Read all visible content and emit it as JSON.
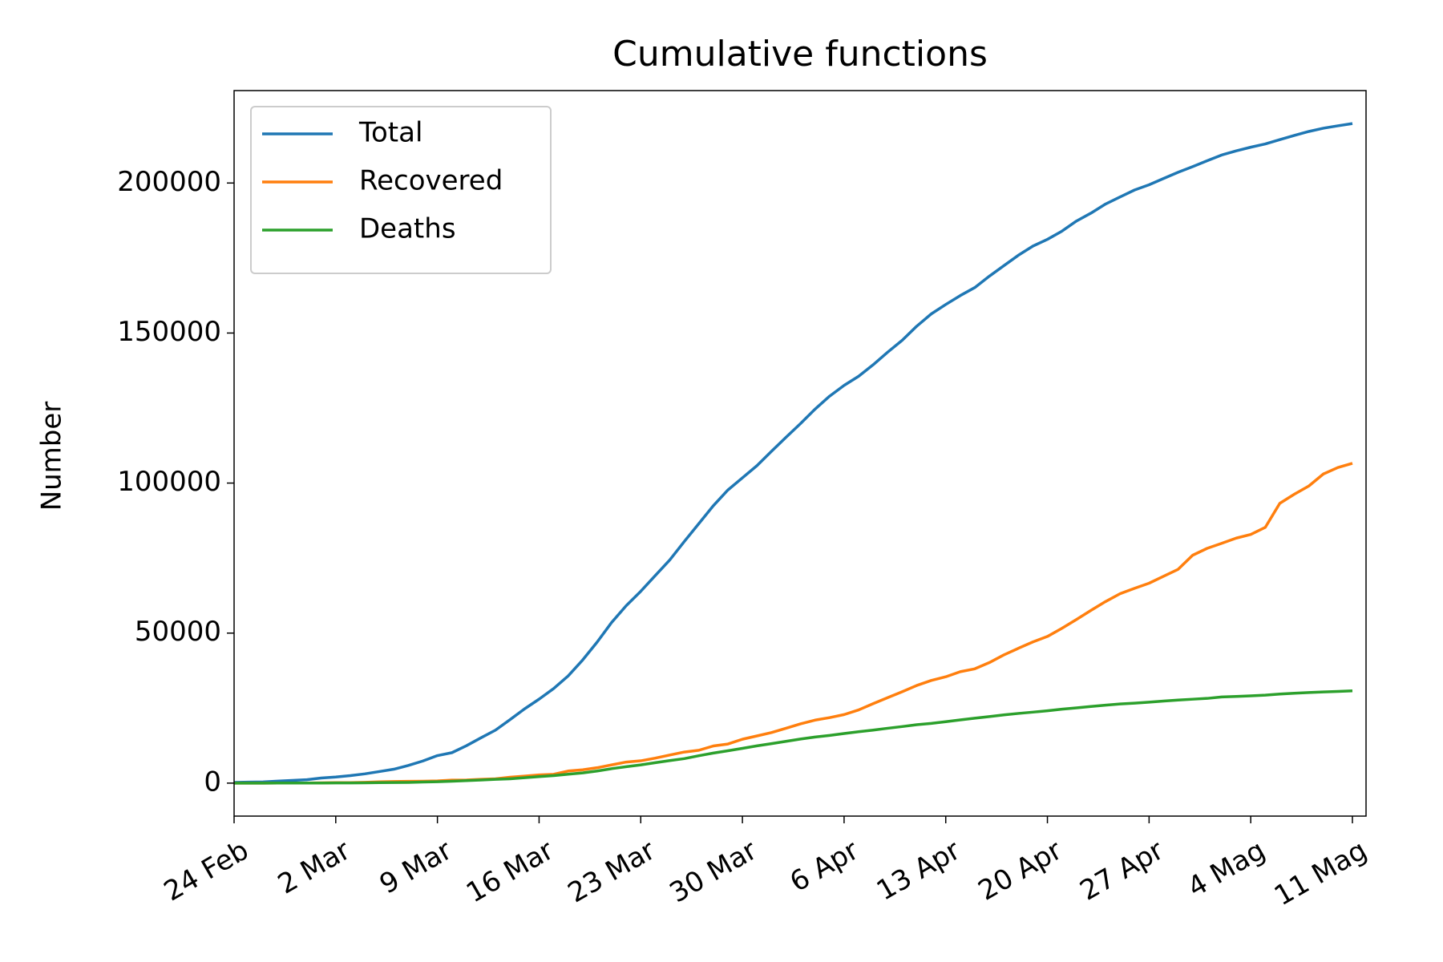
{
  "chart_data": {
    "type": "line",
    "title": "Cumulative functions",
    "ylabel": "Number",
    "categories": [
      "24 Feb",
      null,
      null,
      null,
      null,
      null,
      null,
      "2 Mar",
      null,
      null,
      null,
      null,
      null,
      null,
      "9 Mar",
      null,
      null,
      null,
      null,
      null,
      null,
      "16 Mar",
      null,
      null,
      null,
      null,
      null,
      null,
      "23 Mar",
      null,
      null,
      null,
      null,
      null,
      null,
      "30 Mar",
      null,
      null,
      null,
      null,
      null,
      null,
      "6 Apr",
      null,
      null,
      null,
      null,
      null,
      null,
      "13 Apr",
      null,
      null,
      null,
      null,
      null,
      null,
      "20 Apr",
      null,
      null,
      null,
      null,
      null,
      null,
      "27 Apr",
      null,
      null,
      null,
      null,
      null,
      null,
      "4 Mag",
      null,
      null,
      null,
      null,
      null,
      null,
      "11 Mag"
    ],
    "series": [
      {
        "name": "Total",
        "color": "#1f77b4",
        "values": [
          229,
          322,
          400,
          650,
          888,
          1128,
          1694,
          2036,
          2502,
          3089,
          3858,
          4636,
          5883,
          7375,
          9172,
          10149,
          12462,
          15113,
          17660,
          21157,
          24747,
          27980,
          31506,
          35713,
          41035,
          47021,
          53578,
          59138,
          63927,
          69176,
          74386,
          80539,
          86498,
          92472,
          97689,
          101739,
          105792,
          110574,
          115242,
          119827,
          124632,
          128948,
          132547,
          135586,
          139422,
          143626,
          147577,
          152271,
          156363,
          159516,
          162488,
          165155,
          168941,
          172434,
          175925,
          178972,
          181228,
          183957,
          187327,
          189973,
          192994,
          195351,
          197675,
          199414,
          201505,
          203591,
          205463,
          207428,
          209328,
          210717,
          211938,
          213013,
          214457,
          215858,
          217185,
          218268,
          219070,
          219814
        ]
      },
      {
        "name": "Recovered",
        "color": "#ff7f0e",
        "values": [
          1,
          1,
          3,
          45,
          46,
          46,
          83,
          149,
          160,
          276,
          414,
          523,
          589,
          622,
          724,
          1004,
          1045,
          1258,
          1439,
          1966,
          2335,
          2749,
          2941,
          4025,
          4440,
          5129,
          6072,
          7024,
          7432,
          8326,
          9362,
          10361,
          10950,
          12384,
          13030,
          14620,
          15729,
          16847,
          18278,
          19758,
          20996,
          21815,
          22837,
          24392,
          26491,
          28470,
          30455,
          32534,
          34211,
          35435,
          37130,
          38092,
          40164,
          42727,
          44927,
          47055,
          48877,
          51600,
          54543,
          57576,
          60498,
          63120,
          64928,
          66624,
          68941,
          71252,
          75945,
          78249,
          79914,
          81654,
          82879,
          85231,
          93245,
          96276,
          99023,
          103031,
          105186,
          106587
        ]
      },
      {
        "name": "Deaths",
        "color": "#2ca02c",
        "values": [
          7,
          10,
          12,
          17,
          21,
          29,
          34,
          52,
          79,
          107,
          148,
          197,
          233,
          366,
          463,
          631,
          827,
          1016,
          1266,
          1441,
          1809,
          2158,
          2503,
          2978,
          3405,
          4032,
          4825,
          5476,
          6077,
          6820,
          7503,
          8165,
          9134,
          10023,
          10779,
          11591,
          12428,
          13155,
          13915,
          14681,
          15362,
          15887,
          16523,
          17127,
          17669,
          18279,
          18849,
          19468,
          19899,
          20465,
          21067,
          21645,
          22170,
          22745,
          23227,
          23660,
          24114,
          24648,
          25085,
          25549,
          25969,
          26384,
          26644,
          26977,
          27359,
          27682,
          27967,
          28236,
          28710,
          28884,
          29079,
          29315,
          29684,
          29958,
          30201,
          30395,
          30560,
          30739
        ]
      }
    ],
    "ylim": [
      -10991,
      230805
    ],
    "yticks": [
      0,
      50000,
      100000,
      150000,
      200000
    ],
    "legend": "upper left"
  }
}
